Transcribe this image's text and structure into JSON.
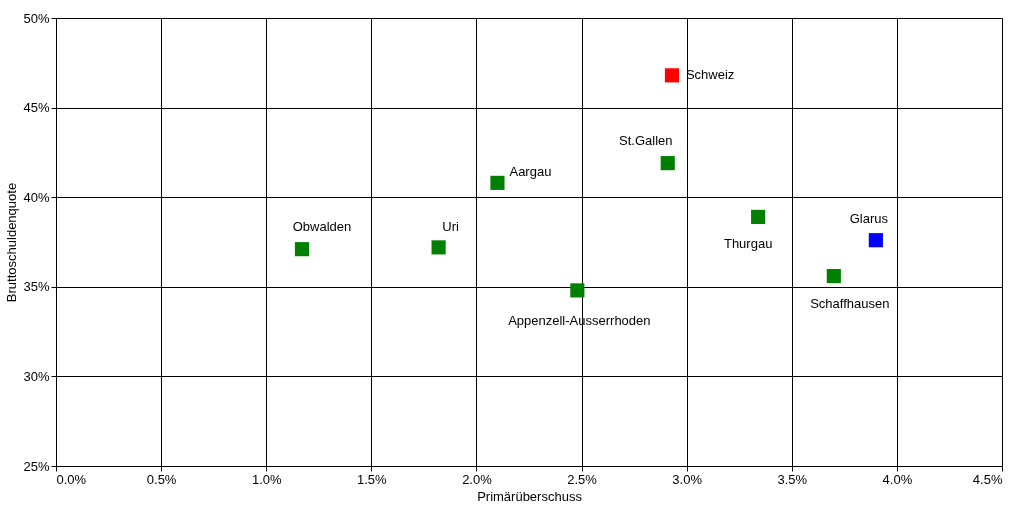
{
  "chart_data": {
    "type": "scatter",
    "xlabel": "Primärüberschuss",
    "ylabel": "Bruttoschuldenquote",
    "xlim": [
      0,
      4.5
    ],
    "ylim": [
      25,
      50
    ],
    "xticks": [
      {
        "value": 0,
        "label": "0.0%"
      },
      {
        "value": 0.5,
        "label": "0.5%"
      },
      {
        "value": 1,
        "label": "1.0%"
      },
      {
        "value": 1.5,
        "label": "1.5%"
      },
      {
        "value": 2,
        "label": "2.0%"
      },
      {
        "value": 2.5,
        "label": "2.5%"
      },
      {
        "value": 3,
        "label": "3.0%"
      },
      {
        "value": 3.5,
        "label": "3.5%"
      },
      {
        "value": 4,
        "label": "4.0%"
      },
      {
        "value": 4.5,
        "label": "4.5%"
      }
    ],
    "yticks": [
      {
        "value": 25,
        "label": "25%"
      },
      {
        "value": 30,
        "label": "30%"
      },
      {
        "value": 35,
        "label": "35%"
      },
      {
        "value": 40,
        "label": "40%"
      },
      {
        "value": 45,
        "label": "45%"
      },
      {
        "value": 50,
        "label": "50%"
      }
    ],
    "grid": true,
    "marker": "square",
    "series": [
      {
        "name": "Schweiz",
        "color": "#ff0000",
        "x": [
          2.93
        ],
        "values": [
          46.8
        ]
      },
      {
        "name": "St.Gallen",
        "color": "#008000",
        "x": [
          2.91
        ],
        "values": [
          41.9
        ]
      },
      {
        "name": "Aargau",
        "color": "#008000",
        "x": [
          2.1
        ],
        "values": [
          40.8
        ]
      },
      {
        "name": "Obwalden",
        "color": "#008000",
        "x": [
          1.17
        ],
        "values": [
          37.1
        ]
      },
      {
        "name": "Uri",
        "color": "#008000",
        "x": [
          1.82
        ],
        "values": [
          37.2
        ]
      },
      {
        "name": "Appenzell-Ausserrhoden",
        "color": "#008000",
        "x": [
          2.48
        ],
        "values": [
          34.8
        ]
      },
      {
        "name": "Thurgau",
        "color": "#008000",
        "x": [
          3.34
        ],
        "values": [
          38.9
        ]
      },
      {
        "name": "Glarus",
        "color": "#0000ff",
        "x": [
          3.9
        ],
        "values": [
          37.6
        ]
      },
      {
        "name": "Schaffhausen",
        "color": "#008000",
        "x": [
          3.7
        ],
        "values": [
          35.6
        ]
      }
    ]
  }
}
